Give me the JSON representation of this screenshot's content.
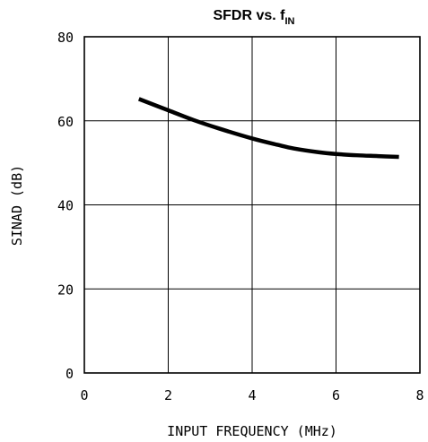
{
  "chart_data": {
    "type": "line",
    "title": "SFDR vs. f",
    "title_subscript": "IN",
    "xlabel": "INPUT FREQUENCY (MHz)",
    "ylabel": "SINAD (dB)",
    "xlim": [
      0,
      8
    ],
    "ylim": [
      0,
      80
    ],
    "xticks": [
      "0",
      "2",
      "4",
      "6",
      "8"
    ],
    "yticks": [
      "0",
      "20",
      "40",
      "60",
      "80"
    ],
    "grid": true,
    "series": [
      {
        "x": [
          1.3,
          2.0,
          2.6,
          3.2,
          4.0,
          4.6,
          5.0,
          5.6,
          6.0,
          6.5,
          7.0,
          7.5
        ],
        "y": [
          65.2,
          62.5,
          60.2,
          58.2,
          55.8,
          54.3,
          53.4,
          52.5,
          52.1,
          51.8,
          51.6,
          51.4
        ]
      }
    ]
  }
}
